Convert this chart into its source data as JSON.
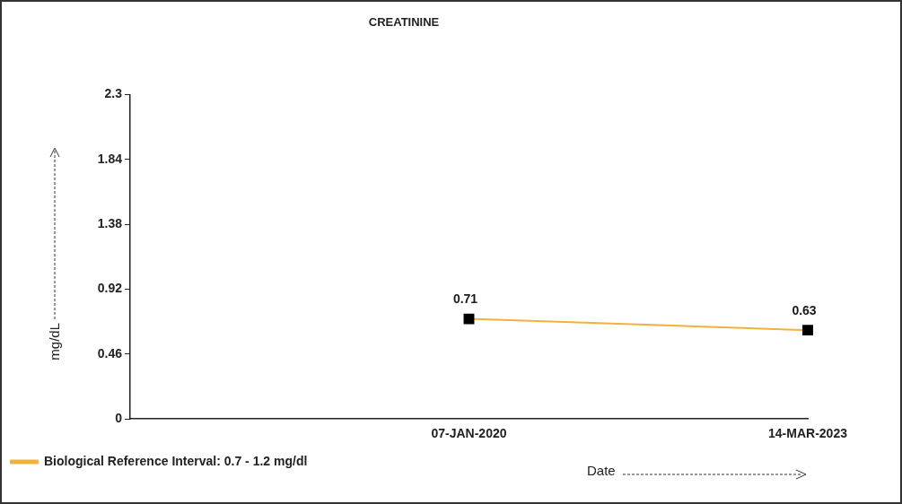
{
  "chart_data": {
    "type": "line",
    "title": "CREATININE",
    "xlabel": "Date",
    "ylabel": "mg/dL",
    "categories": [
      null,
      "07-JAN-2020",
      "14-MAR-2023"
    ],
    "series": [
      {
        "name": "Biological Reference Interval: 0.7 - 1.2 mg/dl",
        "color": "#f0b23c",
        "values": [
          null,
          0.71,
          0.63
        ]
      }
    ],
    "ylim": [
      0,
      2.3
    ],
    "yticks": [
      0,
      0.46,
      0.92,
      1.38,
      1.84,
      2.3
    ],
    "grid": false,
    "legend": "bottom left",
    "marker": "square",
    "data_labels": true
  }
}
